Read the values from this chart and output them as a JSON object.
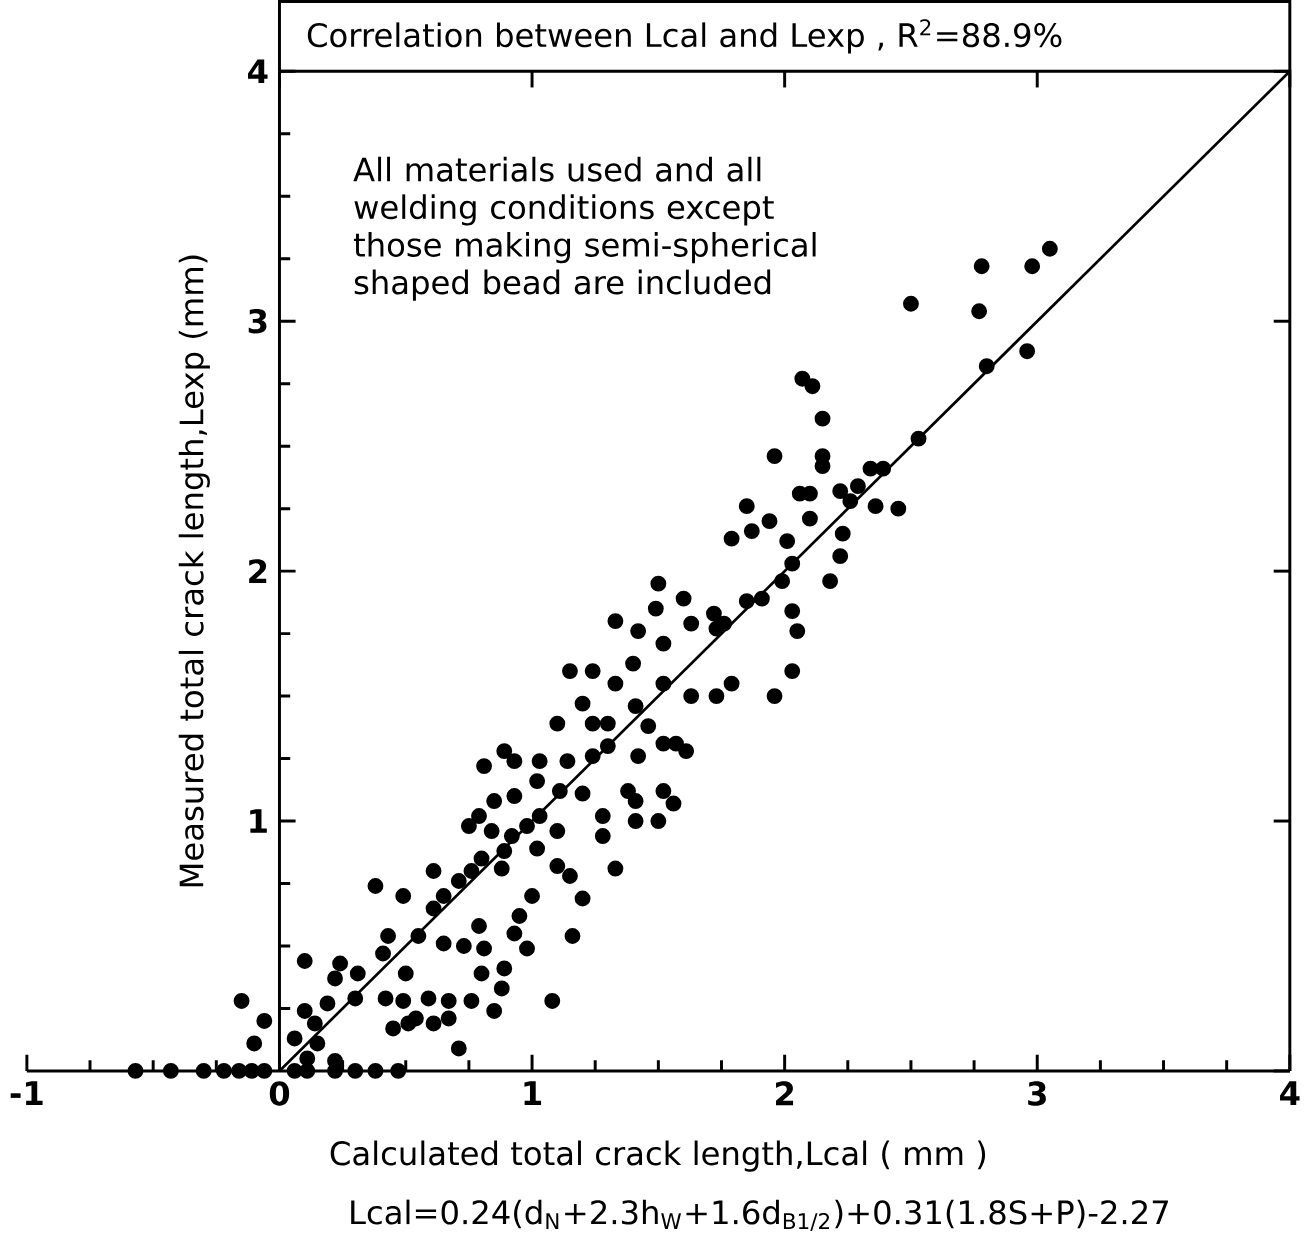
{
  "chart_data": {
    "type": "scatter",
    "title": "Correlation between Lcal and Lexp , R$^{2}$=88.9%",
    "xlabel": "Calculated total crack length,Lcal ( mm )",
    "ylabel": "Measured total crack length,Lexp (mm)",
    "annotations": [
      "All materials used and all welding conditions except those making semi-spherical shaped bead are included",
      "Lcal=0.24(d$_{N}$+2.3h$_{W}$+1.6d$_{B1/2}$)+0.31(1.8S+P)-2.27"
    ],
    "xlim": [
      -1,
      4
    ],
    "ylim": [
      0,
      4
    ],
    "xticks": [
      -1,
      0,
      1,
      2,
      3,
      4
    ],
    "yticks": [
      {
        "value": 0,
        "label": null
      },
      1,
      2,
      3,
      4
    ],
    "grid": false,
    "series": [
      {
        "color": "#000000",
        "marker": "circle",
        "x": [
          2.78,
          2.98,
          3.05,
          2.5,
          2.77,
          2.96,
          2.8,
          2.53,
          2.07,
          2.11,
          2.15,
          1.96,
          2.15,
          2.15,
          2.34,
          2.39,
          2.06,
          2.1,
          2.22,
          2.29,
          2.26,
          2.36,
          2.45,
          1.85,
          1.94,
          2.1,
          1.87,
          1.79,
          2.01,
          2.23,
          2.22,
          2.03,
          1.99,
          2.18,
          1.5,
          1.6,
          1.49,
          1.33,
          1.72,
          1.85,
          1.91,
          2.03,
          2.05,
          1.76,
          1.63,
          2.03,
          1.96,
          1.42,
          1.52,
          1.73,
          1.15,
          1.24,
          1.4,
          1.2,
          1.33,
          1.52,
          1.63,
          1.73,
          1.79,
          1.1,
          1.24,
          1.3,
          1.41,
          1.46,
          1.52,
          1.57,
          1.61,
          1.42,
          0.89,
          0.81,
          0.93,
          1.03,
          1.14,
          1.24,
          1.3,
          1.02,
          1.11,
          1.2,
          1.38,
          1.41,
          1.52,
          1.56,
          1.5,
          1.41,
          1.28,
          1.28,
          0.85,
          0.93,
          0.79,
          1.03,
          0.75,
          0.84,
          0.92,
          0.98,
          1.1,
          1.02,
          0.89,
          0.8,
          1.1,
          1.15,
          1.33,
          1.2,
          1.0,
          0.88,
          0.76,
          0.61,
          0.71,
          0.65,
          0.61,
          0.38,
          0.49,
          0.95,
          0.79,
          0.81,
          0.73,
          0.65,
          0.55,
          0.43,
          0.41,
          0.93,
          0.98,
          0.89,
          0.8,
          0.88,
          1.16,
          1.08,
          0.5,
          0.42,
          0.49,
          0.59,
          0.67,
          0.76,
          0.85,
          0.24,
          0.31,
          0.22,
          0.1,
          0.1,
          0.3,
          0.19,
          0.54,
          0.45,
          0.51,
          0.61,
          0.67,
          -0.15,
          -0.06,
          -0.1,
          0.71,
          0.11,
          0.22,
          0.15,
          0.06,
          0.14,
          -0.57,
          -0.43,
          -0.3,
          -0.22,
          -0.16,
          -0.11,
          -0.06,
          0.06,
          0.11,
          0.22,
          0.3,
          0.38,
          0.47
        ],
        "values": [
          3.22,
          3.22,
          3.29,
          3.07,
          3.04,
          2.88,
          2.82,
          2.53,
          2.77,
          2.74,
          2.61,
          2.46,
          2.46,
          2.42,
          2.41,
          2.41,
          2.31,
          2.31,
          2.32,
          2.34,
          2.28,
          2.26,
          2.25,
          2.26,
          2.2,
          2.21,
          2.16,
          2.13,
          2.12,
          2.15,
          2.06,
          2.03,
          1.96,
          1.96,
          1.95,
          1.89,
          1.85,
          1.8,
          1.83,
          1.88,
          1.89,
          1.84,
          1.76,
          1.79,
          1.79,
          1.6,
          1.5,
          1.76,
          1.71,
          1.77,
          1.6,
          1.6,
          1.63,
          1.47,
          1.55,
          1.55,
          1.5,
          1.5,
          1.55,
          1.39,
          1.39,
          1.39,
          1.46,
          1.38,
          1.31,
          1.31,
          1.28,
          1.26,
          1.28,
          1.22,
          1.24,
          1.24,
          1.24,
          1.26,
          1.3,
          1.16,
          1.12,
          1.11,
          1.12,
          1.08,
          1.12,
          1.07,
          1.0,
          1.0,
          1.02,
          0.94,
          1.08,
          1.1,
          1.02,
          1.02,
          0.98,
          0.96,
          0.94,
          0.98,
          0.96,
          0.89,
          0.88,
          0.85,
          0.82,
          0.78,
          0.81,
          0.69,
          0.7,
          0.81,
          0.8,
          0.8,
          0.76,
          0.7,
          0.65,
          0.74,
          0.7,
          0.62,
          0.58,
          0.49,
          0.5,
          0.51,
          0.54,
          0.54,
          0.47,
          0.55,
          0.49,
          0.41,
          0.39,
          0.33,
          0.54,
          0.28,
          0.39,
          0.29,
          0.28,
          0.29,
          0.28,
          0.28,
          0.24,
          0.43,
          0.39,
          0.37,
          0.44,
          0.24,
          0.29,
          0.27,
          0.21,
          0.17,
          0.19,
          0.19,
          0.21,
          0.28,
          0.2,
          0.11,
          0.09,
          0.05,
          0.04,
          0.11,
          0.13,
          0.19,
          0,
          0,
          0,
          0,
          0,
          0,
          0,
          0,
          0,
          0,
          0,
          0,
          0
        ]
      },
      {
        "type": "line",
        "color": "#000000",
        "line_style": "solid",
        "marker": "none",
        "x": [
          0,
          4
        ],
        "values": [
          0,
          4
        ]
      }
    ]
  }
}
